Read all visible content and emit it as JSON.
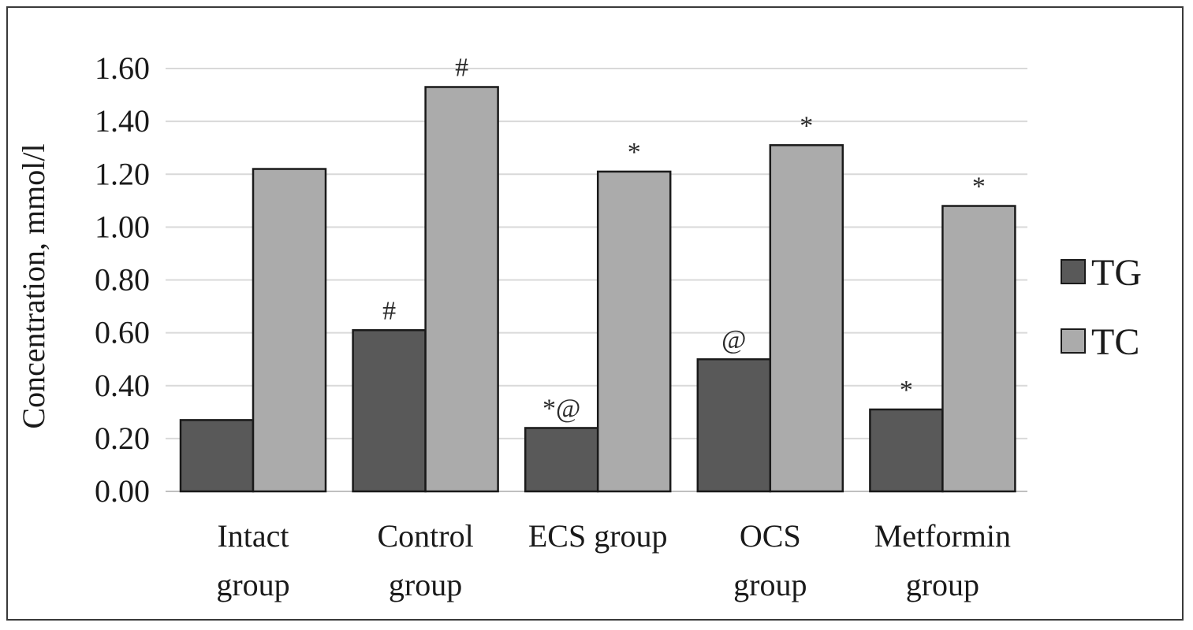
{
  "chart_data": {
    "type": "bar",
    "title": "",
    "xlabel": "",
    "ylabel": "Concentration, mmol/l",
    "ylim": [
      0,
      1.6
    ],
    "yticks": [
      "0.00",
      "0.20",
      "0.40",
      "0.60",
      "0.80",
      "1.00",
      "1.20",
      "1.40",
      "1.60"
    ],
    "ytick_values": [
      0,
      0.2,
      0.4,
      0.6,
      0.8,
      1.0,
      1.2,
      1.4,
      1.6
    ],
    "grid": "horizontal",
    "legend_position": "right",
    "categories": [
      [
        "Intact",
        "group"
      ],
      [
        "Control",
        "group"
      ],
      [
        "ECS group"
      ],
      [
        "OCS",
        "group"
      ],
      [
        "Metformin",
        "group"
      ]
    ],
    "series": [
      {
        "name": "TG",
        "color": "#595959",
        "values": [
          0.27,
          0.61,
          0.24,
          0.5,
          0.31
        ],
        "annotations": [
          "",
          "#",
          "*@",
          "@",
          "*"
        ]
      },
      {
        "name": "TC",
        "color": "#ababab",
        "values": [
          1.22,
          1.53,
          1.21,
          1.31,
          1.08
        ],
        "annotations": [
          "",
          "#",
          "*",
          "*",
          "*"
        ]
      }
    ]
  }
}
